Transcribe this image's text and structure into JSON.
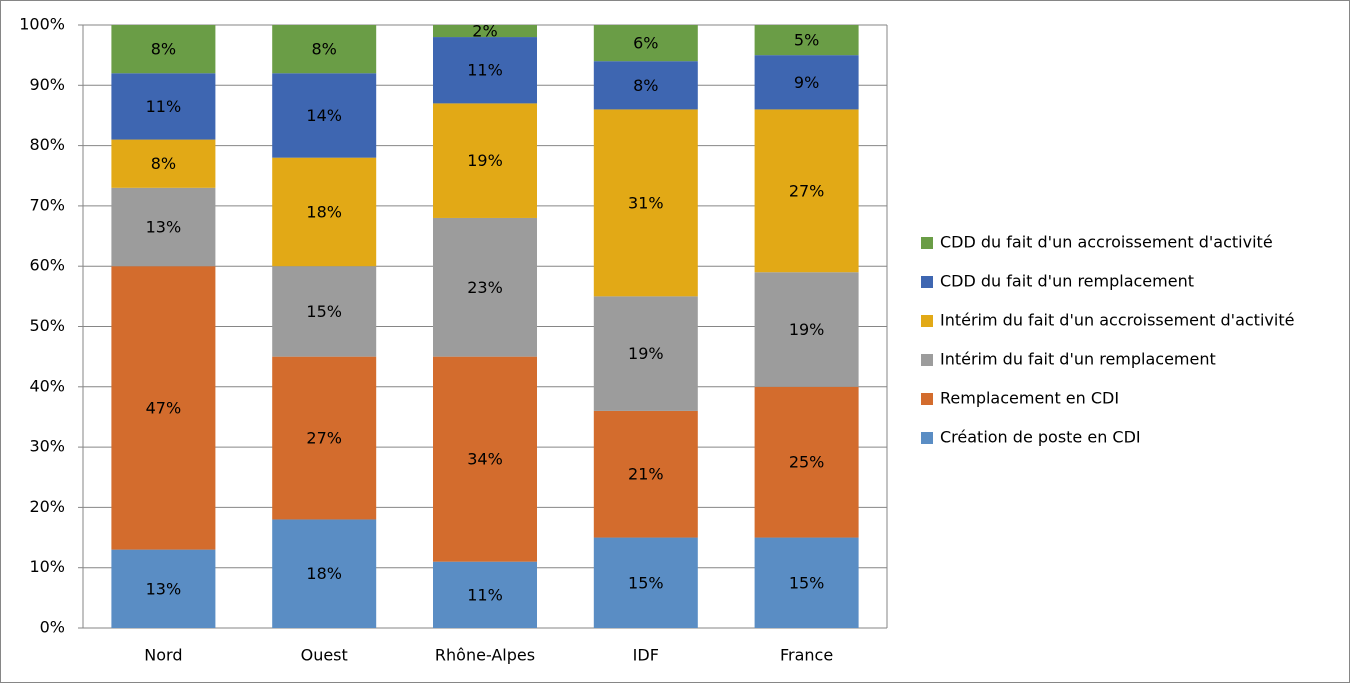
{
  "chart_data": {
    "type": "stacked-bar",
    "categories": [
      "Nord",
      "Ouest",
      "Rhône-Alpes",
      "IDF",
      "France"
    ],
    "ylim": [
      0,
      100
    ],
    "yticks": [
      {
        "value": 0,
        "label": "0%"
      },
      {
        "value": 10,
        "label": "10%"
      },
      {
        "value": 20,
        "label": "20%"
      },
      {
        "value": 30,
        "label": "30%"
      },
      {
        "value": 40,
        "label": "40%"
      },
      {
        "value": 50,
        "label": "50%"
      },
      {
        "value": 60,
        "label": "60%"
      },
      {
        "value": 70,
        "label": "70%"
      },
      {
        "value": 80,
        "label": "80%"
      },
      {
        "value": 90,
        "label": "90%"
      },
      {
        "value": 100,
        "label": "100%"
      }
    ],
    "grid": true,
    "legend": "right",
    "series": [
      {
        "name": "Création de poste en CDI",
        "color": "#5a8dc4",
        "values": [
          13,
          18,
          11,
          15,
          15
        ],
        "value_labels": [
          "13%",
          "18%",
          "11%",
          "15%",
          "15%"
        ]
      },
      {
        "name": "Remplacement en CDI",
        "color": "#d36c2d",
        "values": [
          47,
          27,
          34,
          21,
          25
        ],
        "value_labels": [
          "47%",
          "27%",
          "34%",
          "21%",
          "25%"
        ]
      },
      {
        "name": "Intérim du fait d'un remplacement",
        "color": "#9c9c9c",
        "values": [
          13,
          15,
          23,
          19,
          19
        ],
        "value_labels": [
          "13%",
          "15%",
          "23%",
          "19%",
          "19%"
        ]
      },
      {
        "name": "Intérim du fait d'un accroissement d'activité",
        "color": "#e2a916",
        "values": [
          8,
          18,
          19,
          31,
          27
        ],
        "value_labels": [
          "8%",
          "18%",
          "19%",
          "31%",
          "27%"
        ]
      },
      {
        "name": "CDD du fait d'un remplacement",
        "color": "#3e66b1",
        "values": [
          11,
          14,
          11,
          8,
          9
        ],
        "value_labels": [
          "11%",
          "14%",
          "11%",
          "8%",
          "9%"
        ]
      },
      {
        "name": "CDD du fait d'un accroissement d'activité",
        "color": "#6a9d46",
        "values": [
          8,
          8,
          2,
          6,
          5
        ],
        "value_labels": [
          "8%",
          "8%",
          "2%",
          "6%",
          "5%"
        ]
      }
    ]
  }
}
